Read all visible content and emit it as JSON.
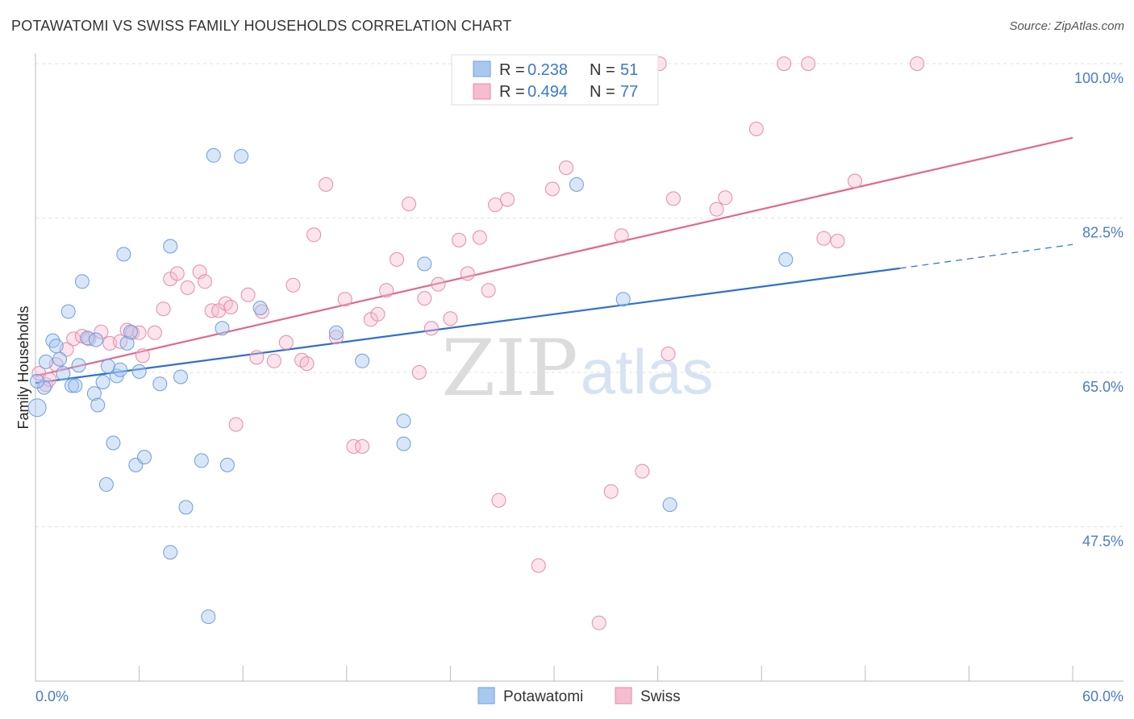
{
  "title": "POTAWATOMI VS SWISS FAMILY HOUSEHOLDS CORRELATION CHART",
  "source": "Source: ZipAtlas.com",
  "watermark": {
    "zip": "ZIP",
    "atlas": "atlas"
  },
  "legend_stats": {
    "r_label": "R =",
    "n_label": "N =",
    "rows": [
      {
        "r": "0.238",
        "n": "51"
      },
      {
        "r": "0.494",
        "n": "77"
      }
    ]
  },
  "chart_data": {
    "type": "scatter",
    "title": "POTAWATOMI VS SWISS FAMILY HOUSEHOLDS CORRELATION CHART",
    "xlabel": "",
    "ylabel": "Family Households",
    "xlim": [
      0,
      60
    ],
    "ylim": [
      32,
      102
    ],
    "x_tick_labels": [
      "0.0%",
      "60.0%"
    ],
    "y_ticks": [
      47.5,
      65.0,
      82.5,
      100.0
    ],
    "y_tick_labels": [
      "47.5%",
      "65.0%",
      "82.5%",
      "100.0%"
    ],
    "grid": true,
    "legend_position": "top-center",
    "colors": {
      "potawatomi": "#a9c8f0",
      "potawatomi_line": "#2f6fcf",
      "swiss": "#f6bcd0",
      "swiss_line": "#e0688e"
    },
    "series": [
      {
        "name": "Potawatomi",
        "trend": {
          "x0": 0,
          "y0": 63.8,
          "x1": 50,
          "y1": 76.8,
          "dashed_to_x": 60,
          "dashed_to_y": 79.5
        },
        "points": [
          [
            0.1,
            61.0
          ],
          [
            0.5,
            63.3
          ],
          [
            0.6,
            66.2
          ],
          [
            1.0,
            68.6
          ],
          [
            1.2,
            68.0
          ],
          [
            1.4,
            66.5
          ],
          [
            1.6,
            64.9
          ],
          [
            1.9,
            71.9
          ],
          [
            2.1,
            63.5
          ],
          [
            2.3,
            63.5
          ],
          [
            2.5,
            65.8
          ],
          [
            2.7,
            75.3
          ],
          [
            3.0,
            68.9
          ],
          [
            3.4,
            62.6
          ],
          [
            3.5,
            68.7
          ],
          [
            3.6,
            61.3
          ],
          [
            3.9,
            63.9
          ],
          [
            4.1,
            52.3
          ],
          [
            4.2,
            65.7
          ],
          [
            4.5,
            57.0
          ],
          [
            4.7,
            64.6
          ],
          [
            4.9,
            65.3
          ],
          [
            5.1,
            78.4
          ],
          [
            5.3,
            68.3
          ],
          [
            5.5,
            69.6
          ],
          [
            5.8,
            54.5
          ],
          [
            6.0,
            65.1
          ],
          [
            6.3,
            55.4
          ],
          [
            7.2,
            63.7
          ],
          [
            7.8,
            44.6
          ],
          [
            7.8,
            79.3
          ],
          [
            8.4,
            64.5
          ],
          [
            8.7,
            49.7
          ],
          [
            9.6,
            55.0
          ],
          [
            10.0,
            37.3
          ],
          [
            10.3,
            89.6
          ],
          [
            10.8,
            70.0
          ],
          [
            11.1,
            54.5
          ],
          [
            11.9,
            89.5
          ],
          [
            13.0,
            72.3
          ],
          [
            17.4,
            69.5
          ],
          [
            18.9,
            66.3
          ],
          [
            21.3,
            59.5
          ],
          [
            21.3,
            56.9
          ],
          [
            22.5,
            77.3
          ],
          [
            25.3,
            100.0
          ],
          [
            31.3,
            86.3
          ],
          [
            34.0,
            73.3
          ],
          [
            36.7,
            50.0
          ],
          [
            43.4,
            77.8
          ],
          [
            0.1,
            64.0
          ]
        ]
      },
      {
        "name": "Swiss",
        "trend": {
          "x0": 0,
          "y0": 64.6,
          "x1": 60,
          "y1": 91.6
        },
        "points": [
          [
            0.2,
            64.9
          ],
          [
            0.6,
            63.6
          ],
          [
            0.8,
            64.2
          ],
          [
            1.2,
            65.9
          ],
          [
            1.8,
            67.6
          ],
          [
            2.2,
            68.8
          ],
          [
            2.7,
            69.1
          ],
          [
            3.1,
            68.8
          ],
          [
            3.8,
            69.6
          ],
          [
            4.3,
            68.3
          ],
          [
            4.9,
            68.5
          ],
          [
            5.3,
            69.8
          ],
          [
            5.6,
            69.5
          ],
          [
            6.0,
            69.5
          ],
          [
            6.2,
            66.9
          ],
          [
            6.9,
            69.5
          ],
          [
            7.4,
            72.2
          ],
          [
            7.8,
            75.6
          ],
          [
            8.2,
            76.2
          ],
          [
            8.8,
            74.6
          ],
          [
            9.5,
            76.4
          ],
          [
            9.8,
            75.3
          ],
          [
            10.2,
            72.0
          ],
          [
            10.6,
            72.0
          ],
          [
            11.0,
            72.8
          ],
          [
            11.3,
            72.4
          ],
          [
            11.6,
            59.1
          ],
          [
            12.3,
            73.8
          ],
          [
            12.8,
            66.7
          ],
          [
            13.1,
            71.9
          ],
          [
            13.8,
            66.3
          ],
          [
            14.5,
            68.4
          ],
          [
            14.9,
            74.9
          ],
          [
            15.4,
            66.4
          ],
          [
            15.7,
            66.0
          ],
          [
            16.1,
            80.6
          ],
          [
            16.8,
            86.3
          ],
          [
            17.4,
            69.0
          ],
          [
            17.9,
            73.3
          ],
          [
            18.4,
            56.6
          ],
          [
            18.9,
            56.6
          ],
          [
            19.4,
            71.0
          ],
          [
            19.8,
            71.6
          ],
          [
            20.3,
            74.3
          ],
          [
            20.9,
            77.8
          ],
          [
            21.6,
            84.1
          ],
          [
            22.2,
            65.0
          ],
          [
            22.5,
            73.4
          ],
          [
            22.9,
            70.0
          ],
          [
            23.3,
            75.0
          ],
          [
            24.0,
            71.1
          ],
          [
            24.5,
            80.0
          ],
          [
            25.0,
            76.2
          ],
          [
            25.7,
            80.3
          ],
          [
            26.2,
            74.3
          ],
          [
            26.6,
            84.0
          ],
          [
            26.8,
            50.5
          ],
          [
            27.3,
            84.6
          ],
          [
            29.1,
            43.1
          ],
          [
            29.9,
            85.8
          ],
          [
            30.7,
            88.2
          ],
          [
            32.6,
            36.6
          ],
          [
            33.3,
            51.5
          ],
          [
            33.9,
            80.5
          ],
          [
            35.1,
            53.8
          ],
          [
            36.1,
            100.0
          ],
          [
            36.6,
            67.1
          ],
          [
            36.9,
            84.7
          ],
          [
            39.4,
            83.5
          ],
          [
            39.9,
            84.8
          ],
          [
            41.7,
            92.6
          ],
          [
            43.3,
            100.0
          ],
          [
            44.7,
            100.0
          ],
          [
            45.6,
            80.2
          ],
          [
            46.4,
            79.9
          ],
          [
            47.4,
            86.7
          ],
          [
            51.0,
            100.0
          ]
        ]
      }
    ]
  }
}
